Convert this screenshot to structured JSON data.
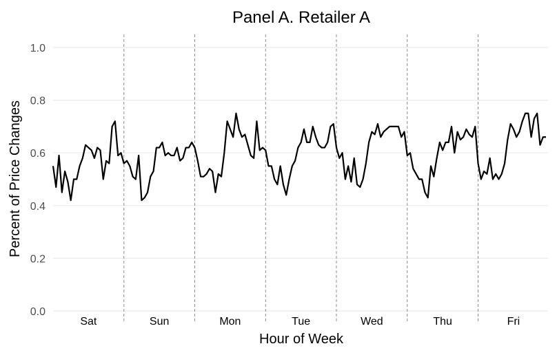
{
  "chart_data": {
    "type": "line",
    "title": "Panel A. Retailer A",
    "xlabel": "Hour of Week",
    "ylabel": "Percent of Price Changes",
    "ylim": [
      0,
      1.05
    ],
    "yticks": [
      "0.0",
      "0.2",
      "0.4",
      "0.6",
      "0.8",
      "1.0"
    ],
    "grid": "horizontal",
    "day_labels": [
      "Sat",
      "Sun",
      "Mon",
      "Tue",
      "Wed",
      "Thu",
      "Fri"
    ],
    "series": [
      {
        "values": [
          0.55,
          0.47,
          0.59,
          0.45,
          0.53,
          0.49,
          0.42,
          0.5,
          0.5,
          0.55,
          0.58,
          0.63,
          0.62,
          0.61,
          0.58,
          0.62,
          0.61,
          0.5,
          0.57,
          0.56,
          0.7,
          0.72,
          0.59,
          0.6,
          0.56,
          0.57,
          0.55,
          0.51,
          0.5,
          0.59,
          0.42,
          0.43,
          0.45,
          0.51,
          0.53,
          0.62,
          0.62,
          0.64,
          0.59,
          0.6,
          0.59,
          0.59,
          0.62,
          0.57,
          0.58,
          0.62,
          0.62,
          0.64,
          0.62,
          0.57,
          0.51,
          0.51,
          0.52,
          0.54,
          0.53,
          0.45,
          0.52,
          0.51,
          0.6,
          0.72,
          0.69,
          0.66,
          0.75,
          0.69,
          0.66,
          0.67,
          0.63,
          0.59,
          0.58,
          0.72,
          0.61,
          0.62,
          0.61,
          0.55,
          0.55,
          0.5,
          0.48,
          0.55,
          0.48,
          0.44,
          0.5,
          0.55,
          0.57,
          0.62,
          0.64,
          0.69,
          0.64,
          0.64,
          0.7,
          0.66,
          0.63,
          0.62,
          0.62,
          0.64,
          0.7,
          0.71,
          0.62,
          0.58,
          0.6,
          0.5,
          0.55,
          0.49,
          0.58,
          0.48,
          0.47,
          0.5,
          0.56,
          0.64,
          0.68,
          0.67,
          0.71,
          0.66,
          0.68,
          0.69,
          0.7,
          0.7,
          0.7,
          0.7,
          0.66,
          0.68,
          0.59,
          0.6,
          0.54,
          0.52,
          0.5,
          0.5,
          0.45,
          0.43,
          0.55,
          0.51,
          0.58,
          0.64,
          0.61,
          0.64,
          0.64,
          0.7,
          0.6,
          0.68,
          0.65,
          0.66,
          0.69,
          0.67,
          0.66,
          0.7,
          0.56,
          0.5,
          0.53,
          0.52,
          0.58,
          0.5,
          0.52,
          0.5,
          0.52,
          0.56,
          0.65,
          0.71,
          0.69,
          0.66,
          0.68,
          0.72,
          0.75,
          0.75,
          0.66,
          0.73,
          0.75,
          0.63,
          0.66,
          0.66
        ]
      }
    ]
  }
}
